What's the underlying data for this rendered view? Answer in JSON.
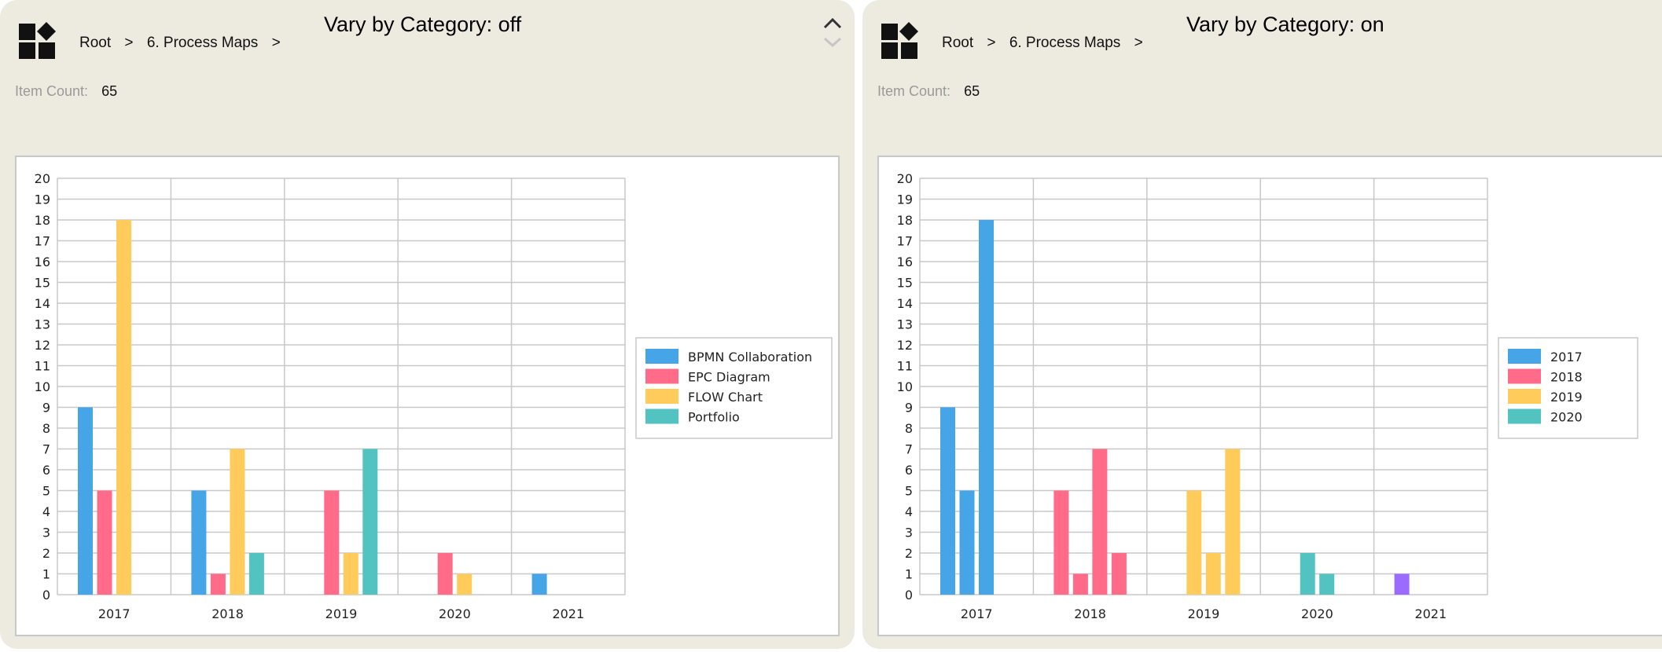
{
  "panels": [
    {
      "breadcrumb": [
        "Root",
        ">",
        "6. Process Maps",
        ">"
      ],
      "title": "Vary by Category: off",
      "item_count_label": "Item Count:",
      "item_count": "65",
      "icons": {
        "app": "grid-diamond-icon",
        "collapse": "chevron-up-icon"
      }
    },
    {
      "breadcrumb": [
        "Root",
        ">",
        "6. Process Maps",
        ">"
      ],
      "title": "Vary by Category: on",
      "item_count_label": "Item Count:",
      "item_count": "65",
      "icons": {
        "app": "grid-diamond-icon",
        "collapse": "chevron-up-icon"
      }
    }
  ],
  "chart_data": [
    {
      "type": "bar",
      "categories": [
        "2017",
        "2018",
        "2019",
        "2020",
        "2021"
      ],
      "ylim": [
        0,
        20
      ],
      "yticks": [
        0,
        1,
        2,
        3,
        4,
        5,
        6,
        7,
        8,
        9,
        10,
        11,
        12,
        13,
        14,
        15,
        16,
        17,
        18,
        19,
        20
      ],
      "grid": true,
      "legend_position": "right",
      "legend": [
        {
          "label": "BPMN Collaboration",
          "color": "#45a5e6"
        },
        {
          "label": "EPC Diagram",
          "color": "#ff6b88"
        },
        {
          "label": "FLOW Chart",
          "color": "#ffcc5c"
        },
        {
          "label": "Portfolio",
          "color": "#52c3c0"
        }
      ],
      "slots_per_category": 4,
      "bars": [
        [
          {
            "slot": 0,
            "value": 9,
            "color": "#45a5e6"
          },
          {
            "slot": 1,
            "value": 5,
            "color": "#ff6b88"
          },
          {
            "slot": 2,
            "value": 18,
            "color": "#ffcc5c"
          }
        ],
        [
          {
            "slot": 0,
            "value": 5,
            "color": "#45a5e6"
          },
          {
            "slot": 1,
            "value": 1,
            "color": "#ff6b88"
          },
          {
            "slot": 2,
            "value": 7,
            "color": "#ffcc5c"
          },
          {
            "slot": 3,
            "value": 2,
            "color": "#52c3c0"
          }
        ],
        [
          {
            "slot": 1,
            "value": 5,
            "color": "#ff6b88"
          },
          {
            "slot": 2,
            "value": 2,
            "color": "#ffcc5c"
          },
          {
            "slot": 3,
            "value": 7,
            "color": "#52c3c0"
          }
        ],
        [
          {
            "slot": 1,
            "value": 2,
            "color": "#ff6b88"
          },
          {
            "slot": 2,
            "value": 1,
            "color": "#ffcc5c"
          }
        ],
        [
          {
            "slot": 0,
            "value": 1,
            "color": "#45a5e6"
          }
        ]
      ]
    },
    {
      "type": "bar",
      "categories": [
        "2017",
        "2018",
        "2019",
        "2020",
        "2021"
      ],
      "ylim": [
        0,
        20
      ],
      "yticks": [
        0,
        1,
        2,
        3,
        4,
        5,
        6,
        7,
        8,
        9,
        10,
        11,
        12,
        13,
        14,
        15,
        16,
        17,
        18,
        19,
        20
      ],
      "grid": true,
      "legend_position": "right",
      "legend": [
        {
          "label": "2017",
          "color": "#45a5e6"
        },
        {
          "label": "2018",
          "color": "#ff6b88"
        },
        {
          "label": "2019",
          "color": "#ffcc5c"
        },
        {
          "label": "2020",
          "color": "#52c3c0"
        }
      ],
      "slots_per_category": 4,
      "bars": [
        [
          {
            "slot": 0,
            "value": 9,
            "color": "#45a5e6"
          },
          {
            "slot": 1,
            "value": 5,
            "color": "#45a5e6"
          },
          {
            "slot": 2,
            "value": 18,
            "color": "#45a5e6"
          }
        ],
        [
          {
            "slot": 0,
            "value": 5,
            "color": "#ff6b88"
          },
          {
            "slot": 1,
            "value": 1,
            "color": "#ff6b88"
          },
          {
            "slot": 2,
            "value": 7,
            "color": "#ff6b88"
          },
          {
            "slot": 3,
            "value": 2,
            "color": "#ff6b88"
          }
        ],
        [
          {
            "slot": 1,
            "value": 5,
            "color": "#ffcc5c"
          },
          {
            "slot": 2,
            "value": 2,
            "color": "#ffcc5c"
          },
          {
            "slot": 3,
            "value": 7,
            "color": "#ffcc5c"
          }
        ],
        [
          {
            "slot": 1,
            "value": 2,
            "color": "#52c3c0"
          },
          {
            "slot": 2,
            "value": 1,
            "color": "#52c3c0"
          }
        ],
        [
          {
            "slot": 0,
            "value": 1,
            "color": "#9b6bff"
          }
        ]
      ]
    }
  ]
}
